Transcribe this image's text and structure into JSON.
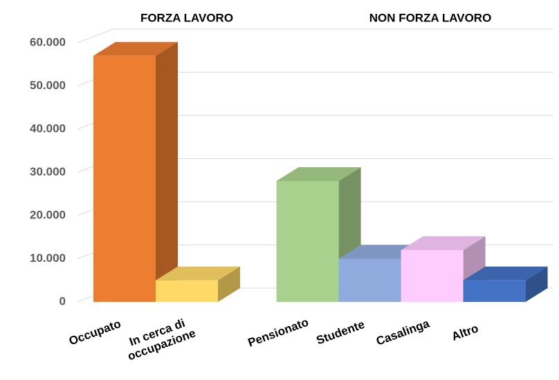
{
  "chart_data": {
    "type": "bar3d",
    "annotations": [
      "FORZA LAVORO",
      "NON FORZA LAVORO"
    ],
    "categories": [
      "Occupato",
      "In cerca di occupazione",
      "Pensionato",
      "Studente",
      "Casalinga",
      "Altro"
    ],
    "values": [
      57000,
      5000,
      28000,
      10000,
      12000,
      5000
    ],
    "colors": [
      "#ed7d31",
      "#ffd966",
      "#a9d18e",
      "#8faadc",
      "#ffccff",
      "#4472c4"
    ],
    "ylim": [
      0,
      60000
    ],
    "yticks": [
      0,
      {
        "value": 10000,
        "label": "10.000"
      },
      {
        "value": 20000,
        "label": "20.000"
      },
      {
        "value": 30000,
        "label": "30.000"
      },
      {
        "value": 40000,
        "label": "40.000"
      },
      {
        "value": 50000,
        "label": "50.000"
      },
      {
        "value": 60000,
        "label": "60.000"
      }
    ],
    "grid": true
  }
}
